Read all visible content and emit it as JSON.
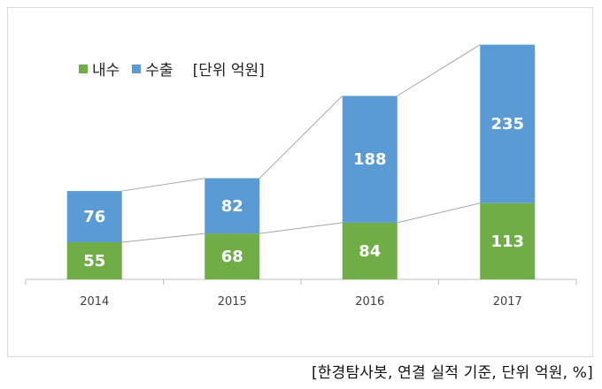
{
  "chart_data": {
    "type": "bar",
    "stacked": true,
    "categories": [
      "2014",
      "2015",
      "2016",
      "2017"
    ],
    "series": [
      {
        "name": "내수",
        "values": [
          55,
          68,
          84,
          113
        ],
        "color": "#70ad47"
      },
      {
        "name": "수출",
        "values": [
          76,
          82,
          188,
          235
        ],
        "color": "#5b9bd5"
      }
    ],
    "ylim": [
      0,
      350
    ],
    "unit_note": "[단위 억원]",
    "legend_position": "top-left",
    "series_lines": true,
    "grid": false
  },
  "source_note": "[한경탐사봇, 연결 실적 기준, 단위 억원, %]"
}
